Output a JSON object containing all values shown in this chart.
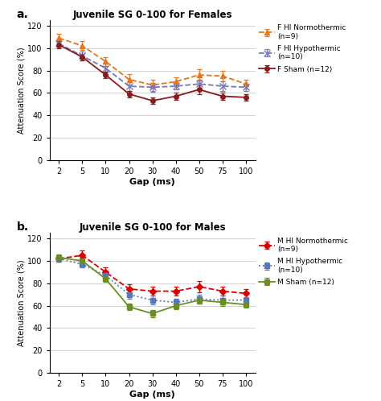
{
  "gap_ms": [
    2,
    5,
    10,
    20,
    30,
    40,
    50,
    75,
    100
  ],
  "panel_a": {
    "title": "Juvenile SG 0-100 for Females",
    "series": [
      {
        "label": "F HI Normothermic\n(n=9)",
        "color": "#E8761A",
        "linestyle": "--",
        "marker": "^",
        "markersize": 5,
        "markerfacecolor": "#E8761A",
        "values": [
          109,
          102,
          88,
          72,
          67,
          70,
          76,
          75,
          68
        ],
        "errors": [
          4,
          4,
          4,
          5,
          5,
          4,
          5,
          5,
          4
        ]
      },
      {
        "label": "F HI Hypothermic\n(n=10)",
        "color": "#7777BB",
        "linestyle": "--",
        "marker": "x",
        "markersize": 6,
        "markerfacecolor": "#7777BB",
        "values": [
          104,
          93,
          82,
          66,
          65,
          66,
          68,
          66,
          65
        ],
        "errors": [
          3,
          4,
          4,
          4,
          4,
          3,
          4,
          4,
          3
        ]
      },
      {
        "label": "F Sham (n=12)",
        "color": "#8B1A1A",
        "linestyle": "-",
        "marker": "o",
        "markersize": 4,
        "markerfacecolor": "#8B1A1A",
        "values": [
          103,
          92,
          76,
          59,
          53,
          57,
          63,
          57,
          56
        ],
        "errors": [
          3,
          3,
          3,
          3,
          3,
          3,
          4,
          3,
          3
        ]
      }
    ]
  },
  "panel_b": {
    "title": "Juvenile SG 0-100 for Males",
    "series": [
      {
        "label": "M HI Normothermic\n(n=9)",
        "color": "#DD0000",
        "linestyle": "--",
        "marker": "D",
        "markersize": 4,
        "markerfacecolor": "#DD0000",
        "values": [
          102,
          105,
          90,
          75,
          73,
          73,
          77,
          73,
          71
        ],
        "errors": [
          3,
          4,
          4,
          4,
          4,
          4,
          5,
          4,
          4
        ]
      },
      {
        "label": "M HI Hypothermic\n(n=10)",
        "color": "#5577BB",
        "linestyle": ":",
        "marker": "s",
        "markersize": 4,
        "markerfacecolor": "#5577BB",
        "values": [
          102,
          97,
          87,
          70,
          65,
          63,
          66,
          65,
          65
        ],
        "errors": [
          3,
          3,
          4,
          4,
          4,
          3,
          4,
          4,
          3
        ]
      },
      {
        "label": "M Sham (n=12)",
        "color": "#6B8E23",
        "linestyle": "-",
        "marker": "s",
        "markersize": 4,
        "markerfacecolor": "#6B8E23",
        "values": [
          103,
          100,
          84,
          59,
          53,
          60,
          65,
          63,
          61
        ],
        "errors": [
          3,
          3,
          3,
          3,
          3,
          3,
          3,
          3,
          3
        ]
      }
    ]
  },
  "ylabel": "Attenuation Score (%)",
  "xlabel": "Gap (ms)",
  "ylim": [
    0,
    125
  ],
  "yticks": [
    0,
    20,
    40,
    60,
    80,
    100,
    120
  ],
  "xtick_labels": [
    "2",
    "5",
    "10",
    "20",
    "30",
    "40",
    "50",
    "75",
    "100"
  ],
  "background_color": "#FFFFFF",
  "figsize": [
    4.74,
    4.98
  ],
  "dpi": 100
}
